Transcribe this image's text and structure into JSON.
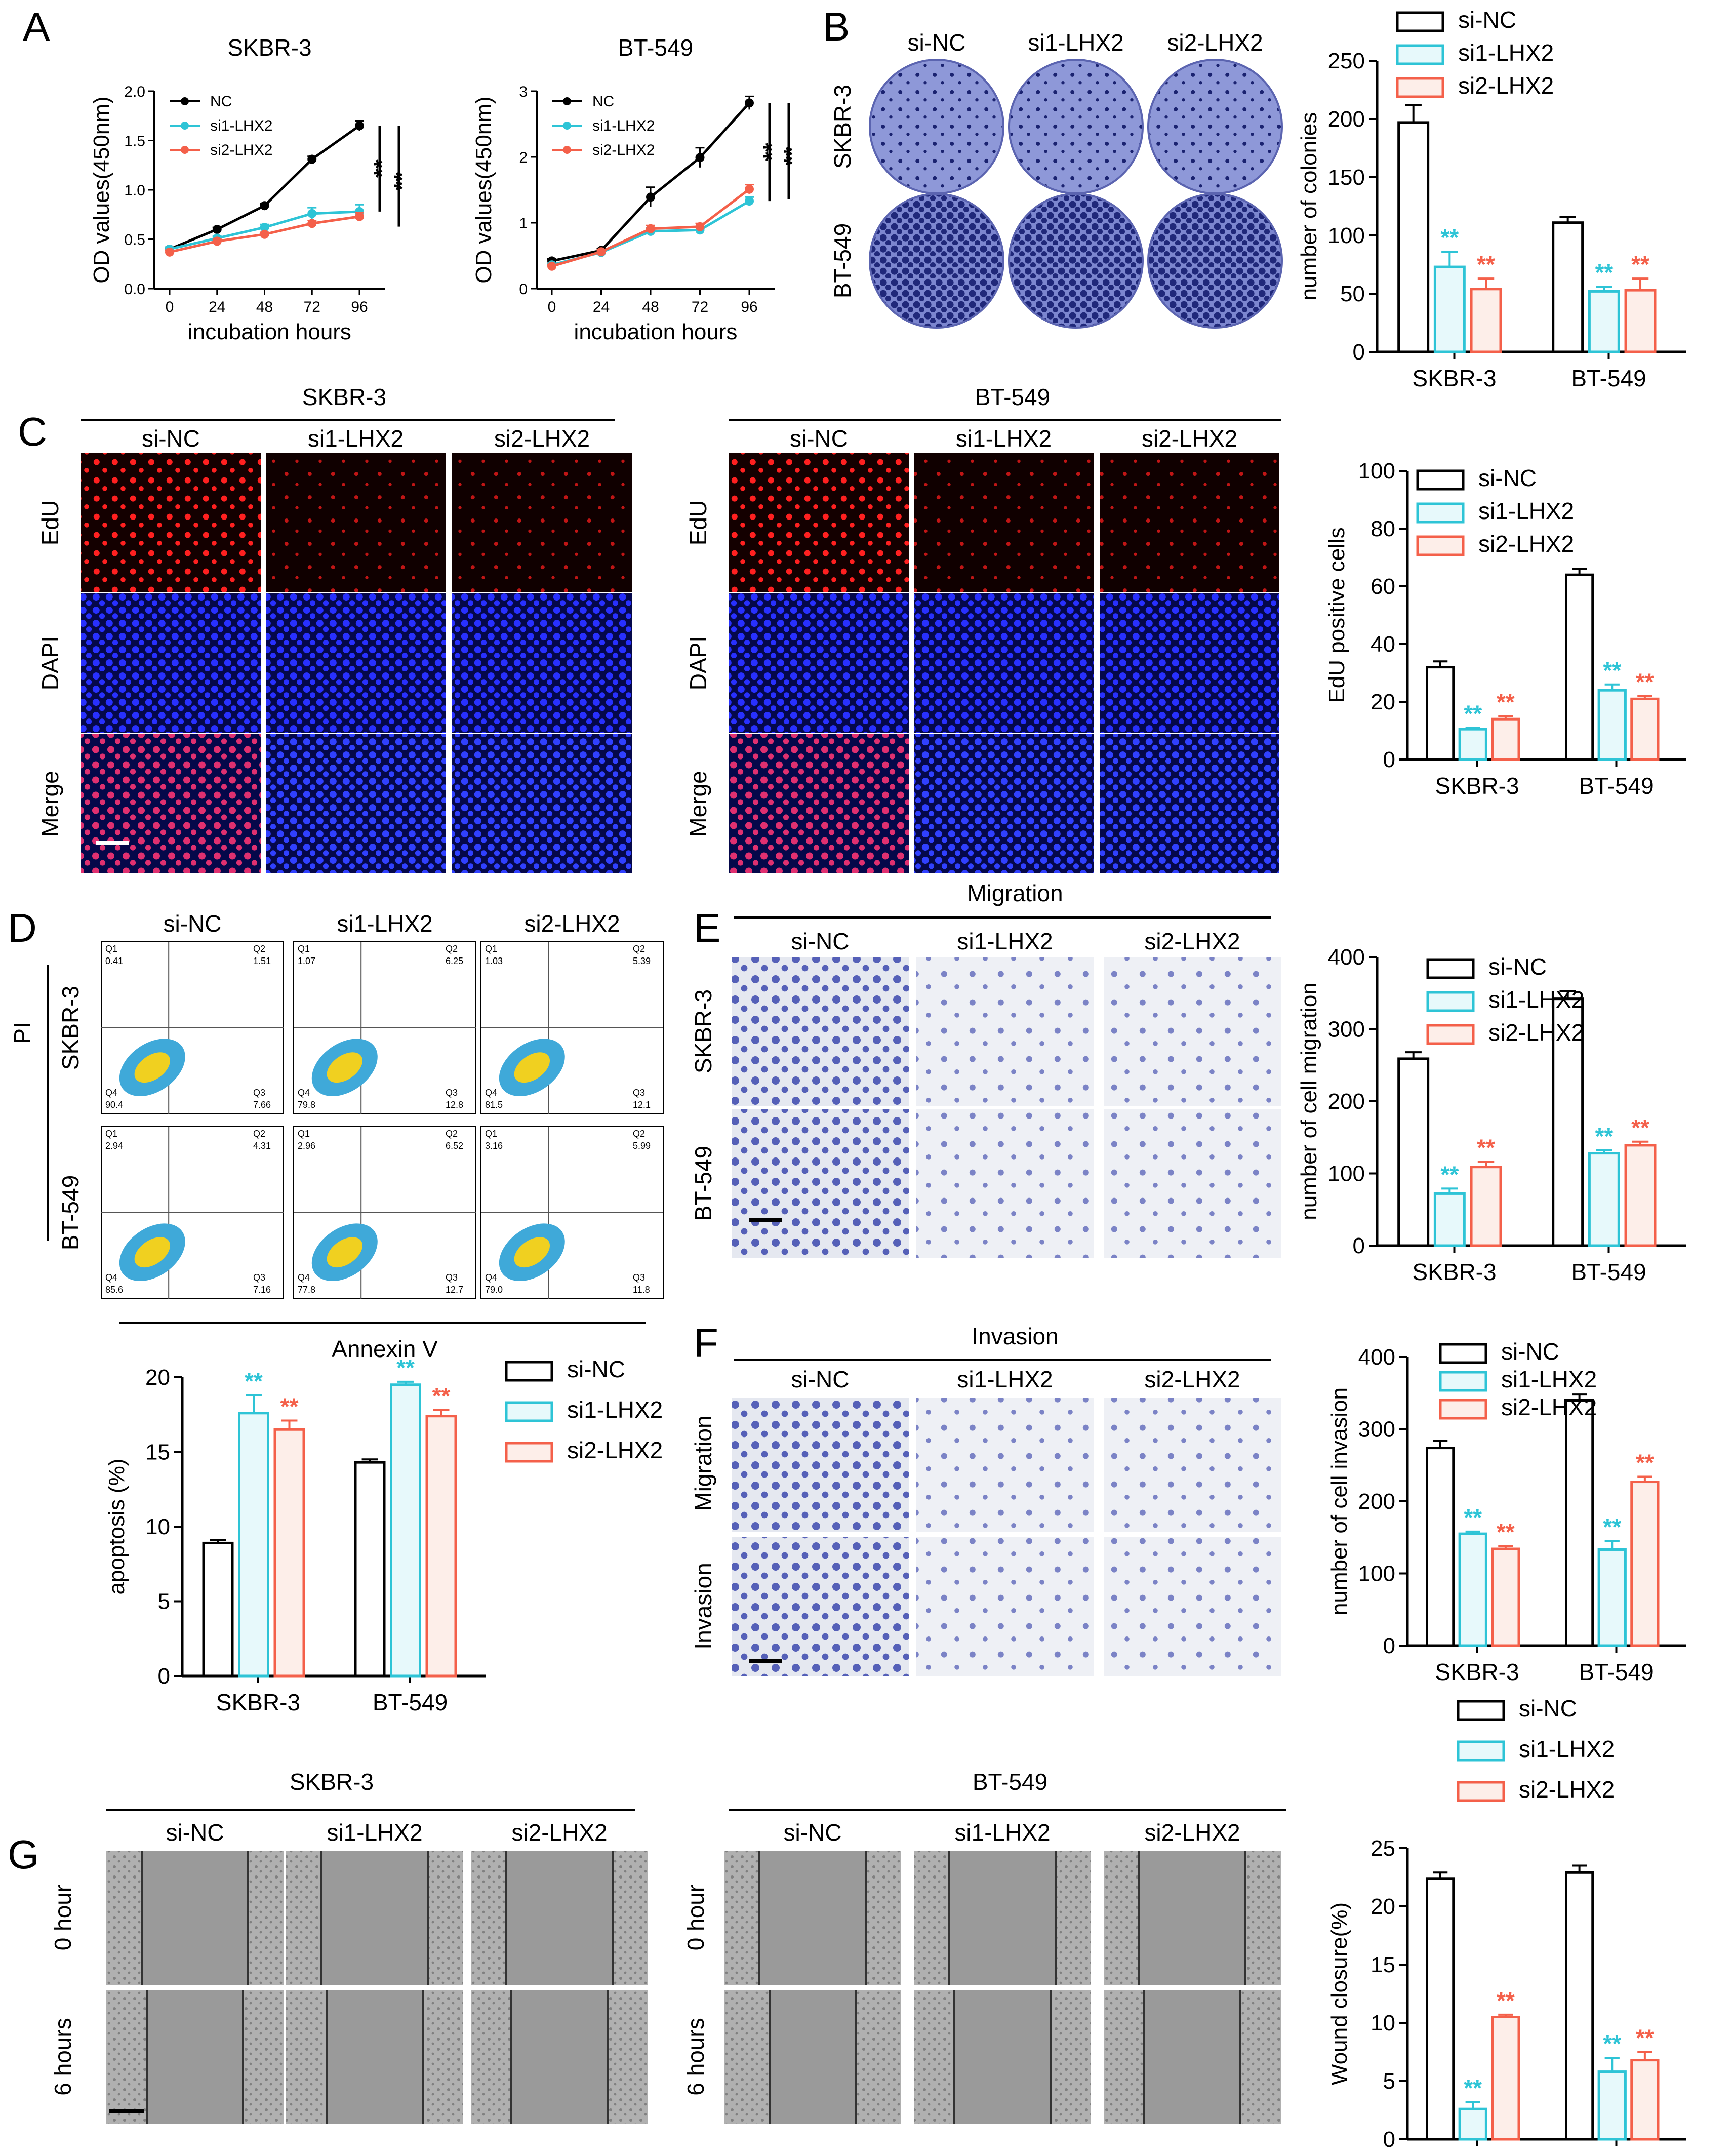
{
  "panels": [
    "A",
    "B",
    "C",
    "D",
    "E",
    "F",
    "G"
  ],
  "colors": {
    "nc": "#000000",
    "si1": "#2ec4d6",
    "si2": "#f4604a",
    "si1_fill": "#e7f9fb",
    "si2_fill": "#fdeee9"
  },
  "groups": [
    "si-NC",
    "si1-LHX2",
    "si2-LHX2"
  ],
  "cell_lines": [
    "SKBR-3",
    "BT-549"
  ],
  "significance": "**",
  "A": {
    "skbr3": "SKBR-3",
    "bt549": "BT-549"
  },
  "C": {
    "rows": [
      "EdU",
      "DAPI",
      "Merge"
    ]
  },
  "D": {
    "axis_left": "PI",
    "axis_bottom": "Annexin V",
    "flow_values": [
      {
        "q1": "0.41",
        "q2": "1.51",
        "q3": "7.66",
        "q4": "90.4"
      },
      {
        "q1": "1.07",
        "q2": "6.25",
        "q3": "12.8",
        "q4": "79.8"
      },
      {
        "q1": "1.03",
        "q2": "5.39",
        "q3": "12.1",
        "q4": "81.5"
      },
      {
        "q1": "2.94",
        "q2": "4.31",
        "q3": "7.16",
        "q4": "85.6"
      },
      {
        "q1": "2.96",
        "q2": "6.52",
        "q3": "12.7",
        "q4": "77.8"
      },
      {
        "q1": "3.16",
        "q2": "5.99",
        "q3": "11.8",
        "q4": "79.0"
      }
    ],
    "quadrants": [
      "Q1",
      "Q2",
      "Q3",
      "Q4"
    ]
  },
  "E": {
    "title": "Migration"
  },
  "F": {
    "title": "Invasion",
    "rows": [
      "Migration",
      "Invasion"
    ]
  },
  "G": {
    "rows": [
      "0 hour",
      "6 hours"
    ]
  },
  "chart_data": [
    {
      "id": "A-SKBR3",
      "type": "line",
      "title": "SKBR-3",
      "xlabel": "incubation hours",
      "ylabel": "OD values(450nm)",
      "x": [
        0,
        24,
        48,
        72,
        96
      ],
      "xlim": [
        0,
        96
      ],
      "ylim": [
        0,
        2.0
      ],
      "yticks": [
        "0.0",
        "0.5",
        "1.0",
        "1.5",
        "2.0"
      ],
      "series": [
        {
          "name": "NC",
          "values": [
            0.4,
            0.6,
            0.84,
            1.31,
            1.65
          ],
          "err": [
            0.02,
            0.02,
            0.02,
            0.03,
            0.05
          ]
        },
        {
          "name": "si1-LHX2",
          "values": [
            0.4,
            0.51,
            0.62,
            0.76,
            0.78
          ],
          "err": [
            0.02,
            0.02,
            0.03,
            0.06,
            0.07
          ]
        },
        {
          "name": "si2-LHX2",
          "values": [
            0.37,
            0.48,
            0.55,
            0.66,
            0.73
          ],
          "err": [
            0.02,
            0.02,
            0.02,
            0.03,
            0.04
          ]
        }
      ],
      "annotations": [
        "**",
        "**"
      ]
    },
    {
      "id": "A-BT549",
      "type": "line",
      "title": "BT-549",
      "xlabel": "incubation hours",
      "ylabel": "OD values(450nm)",
      "x": [
        0,
        24,
        48,
        72,
        96
      ],
      "xlim": [
        0,
        96
      ],
      "ylim": [
        0,
        3
      ],
      "yticks": [
        "0",
        "1",
        "2",
        "3"
      ],
      "series": [
        {
          "name": "NC",
          "values": [
            0.42,
            0.58,
            1.39,
            1.99,
            2.82
          ],
          "err": [
            0.03,
            0.03,
            0.15,
            0.15,
            0.1
          ]
        },
        {
          "name": "si1-LHX2",
          "values": [
            0.36,
            0.55,
            0.87,
            0.89,
            1.33
          ],
          "err": [
            0.02,
            0.03,
            0.05,
            0.05,
            0.06
          ]
        },
        {
          "name": "si2-LHX2",
          "values": [
            0.34,
            0.56,
            0.91,
            0.94,
            1.51
          ],
          "err": [
            0.02,
            0.03,
            0.05,
            0.05,
            0.07
          ]
        }
      ],
      "annotations": [
        "**",
        "**"
      ]
    },
    {
      "id": "B",
      "type": "bar",
      "ylabel": "number of colonies",
      "ylim": [
        0,
        250
      ],
      "yticks": [
        "0",
        "50",
        "100",
        "150",
        "200",
        "250"
      ],
      "legend": "top-right",
      "categories": [
        "SKBR-3",
        "BT-549"
      ],
      "series": [
        {
          "name": "si-NC",
          "values": [
            197,
            111
          ],
          "err": [
            15,
            5
          ]
        },
        {
          "name": "si1-LHX2",
          "values": [
            73,
            52
          ],
          "err": [
            13,
            4
          ]
        },
        {
          "name": "si2-LHX2",
          "values": [
            54,
            53
          ],
          "err": [
            9,
            10
          ]
        }
      ]
    },
    {
      "id": "C",
      "type": "bar",
      "ylabel": "EdU positive cells",
      "ylim": [
        0,
        100
      ],
      "yticks": [
        "0",
        "20",
        "40",
        "60",
        "80",
        "100"
      ],
      "legend": "top-right",
      "categories": [
        "SKBR-3",
        "BT-549"
      ],
      "series": [
        {
          "name": "si-NC",
          "values": [
            32,
            64
          ],
          "err": [
            2,
            2
          ]
        },
        {
          "name": "si1-LHX2",
          "values": [
            10.5,
            24
          ],
          "err": [
            0.5,
            2
          ]
        },
        {
          "name": "si2-LHX2",
          "values": [
            14,
            21
          ],
          "err": [
            1,
            1
          ]
        }
      ]
    },
    {
      "id": "D",
      "type": "bar",
      "ylabel": "apoptosis (%)",
      "ylim": [
        0,
        20
      ],
      "yticks": [
        "0",
        "5",
        "10",
        "15",
        "20"
      ],
      "legend": "right",
      "categories": [
        "SKBR-3",
        "BT-549"
      ],
      "series": [
        {
          "name": "si-NC",
          "values": [
            8.9,
            14.3
          ],
          "err": [
            0.2,
            0.2
          ]
        },
        {
          "name": "si1-LHX2",
          "values": [
            17.6,
            19.5
          ],
          "err": [
            1.2,
            0.2
          ]
        },
        {
          "name": "si2-LHX2",
          "values": [
            16.5,
            17.4
          ],
          "err": [
            0.6,
            0.4
          ]
        }
      ]
    },
    {
      "id": "E",
      "type": "bar",
      "ylabel": "number of cell migration",
      "ylim": [
        0,
        400
      ],
      "yticks": [
        "0",
        "100",
        "200",
        "300",
        "400"
      ],
      "legend": "top-right",
      "categories": [
        "SKBR-3",
        "BT-549"
      ],
      "series": [
        {
          "name": "si-NC",
          "values": [
            259,
            342
          ],
          "err": [
            9,
            11
          ]
        },
        {
          "name": "si1-LHX2",
          "values": [
            72,
            128
          ],
          "err": [
            7,
            4
          ]
        },
        {
          "name": "si2-LHX2",
          "values": [
            109,
            139
          ],
          "err": [
            7,
            5
          ]
        }
      ]
    },
    {
      "id": "F",
      "type": "bar",
      "ylabel": "number of cell invasion",
      "ylim": [
        0,
        400
      ],
      "yticks": [
        "0",
        "100",
        "200",
        "300",
        "400"
      ],
      "legend": "top-right",
      "categories": [
        "SKBR-3",
        "BT-549"
      ],
      "series": [
        {
          "name": "si-NC",
          "values": [
            274,
            340
          ],
          "err": [
            10,
            8
          ]
        },
        {
          "name": "si1-LHX2",
          "values": [
            155,
            133
          ],
          "err": [
            3,
            12
          ]
        },
        {
          "name": "si2-LHX2",
          "values": [
            134,
            227
          ],
          "err": [
            4,
            7
          ]
        }
      ]
    },
    {
      "id": "G",
      "type": "bar",
      "ylabel": "Wound closure(%)",
      "ylim": [
        0,
        25
      ],
      "yticks": [
        "0",
        "5",
        "10",
        "15",
        "20",
        "25"
      ],
      "legend": "top",
      "categories": [
        "SKBR-3",
        "BT549"
      ],
      "series": [
        {
          "name": "si-NC",
          "values": [
            22.4,
            22.9
          ],
          "err": [
            0.5,
            0.6
          ]
        },
        {
          "name": "si1-LHX2",
          "values": [
            2.6,
            5.8
          ],
          "err": [
            0.6,
            1.2
          ]
        },
        {
          "name": "si2-LHX2",
          "values": [
            10.5,
            6.8
          ],
          "err": [
            0.2,
            0.7
          ]
        }
      ]
    }
  ]
}
